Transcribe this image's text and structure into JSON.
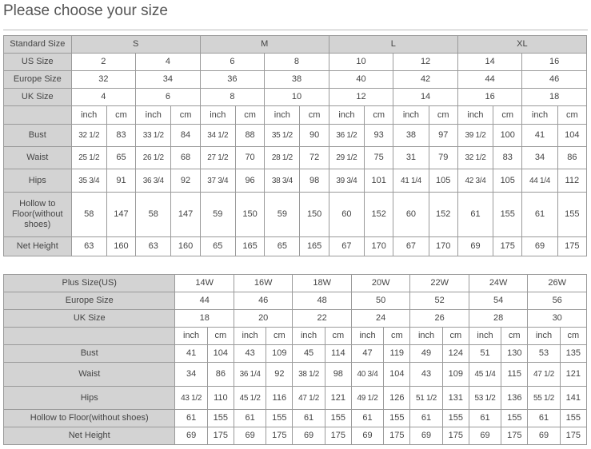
{
  "title": "Please choose your size",
  "table1": {
    "size_label": "Standard Size",
    "sizes": [
      "S",
      "M",
      "L",
      "XL"
    ],
    "rows": [
      {
        "label": "US Size",
        "values": [
          "2",
          "4",
          "6",
          "8",
          "10",
          "12",
          "14",
          "16"
        ]
      },
      {
        "label": "Europe Size",
        "values": [
          "32",
          "34",
          "36",
          "38",
          "40",
          "42",
          "44",
          "46"
        ]
      },
      {
        "label": "UK Size",
        "values": [
          "4",
          "6",
          "8",
          "10",
          "12",
          "14",
          "16",
          "18"
        ]
      }
    ],
    "units": [
      "inch",
      "cm"
    ],
    "measures": [
      {
        "label": "Bust",
        "values": [
          "32 1/2",
          "83",
          "33 1/2",
          "84",
          "34 1/2",
          "88",
          "35 1/2",
          "90",
          "36 1/2",
          "93",
          "38",
          "97",
          "39 1/2",
          "100",
          "41",
          "104"
        ]
      },
      {
        "label": "Waist",
        "values": [
          "25 1/2",
          "65",
          "26 1/2",
          "68",
          "27 1/2",
          "70",
          "28 1/2",
          "72",
          "29 1/2",
          "75",
          "31",
          "79",
          "32 1/2",
          "83",
          "34",
          "86"
        ]
      },
      {
        "label": "Hips",
        "values": [
          "35 3/4",
          "91",
          "36 3/4",
          "92",
          "37 3/4",
          "96",
          "38 3/4",
          "98",
          "39 3/4",
          "101",
          "41 1/4",
          "105",
          "42 3/4",
          "105",
          "44 1/4",
          "112"
        ]
      },
      {
        "label": "Hollow to Floor(without shoes)",
        "values": [
          "58",
          "147",
          "58",
          "147",
          "59",
          "150",
          "59",
          "150",
          "60",
          "152",
          "60",
          "152",
          "61",
          "155",
          "61",
          "155"
        ]
      },
      {
        "label": "Net Height",
        "values": [
          "63",
          "160",
          "63",
          "160",
          "65",
          "165",
          "65",
          "165",
          "67",
          "170",
          "67",
          "170",
          "69",
          "175",
          "69",
          "175"
        ]
      }
    ]
  },
  "table2": {
    "rows": [
      {
        "label": "Plus Size(US)",
        "values": [
          "14W",
          "16W",
          "18W",
          "20W",
          "22W",
          "24W",
          "26W"
        ]
      },
      {
        "label": "Europe Size",
        "values": [
          "44",
          "46",
          "48",
          "50",
          "52",
          "54",
          "56"
        ]
      },
      {
        "label": "UK Size",
        "values": [
          "18",
          "20",
          "22",
          "24",
          "26",
          "28",
          "30"
        ]
      }
    ],
    "units": [
      "inch",
      "cm"
    ],
    "measures": [
      {
        "label": "Bust",
        "values": [
          "41",
          "104",
          "43",
          "109",
          "45",
          "114",
          "47",
          "119",
          "49",
          "124",
          "51",
          "130",
          "53",
          "135"
        ]
      },
      {
        "label": "Waist",
        "values": [
          "34",
          "86",
          "36 1/4",
          "92",
          "38 1/2",
          "98",
          "40 3/4",
          "104",
          "43",
          "109",
          "45 1/4",
          "115",
          "47 1/2",
          "121"
        ]
      },
      {
        "label": "Hips",
        "values": [
          "43 1/2",
          "110",
          "45 1/2",
          "116",
          "47 1/2",
          "121",
          "49 1/2",
          "126",
          "51 1/2",
          "131",
          "53 1/2",
          "136",
          "55 1/2",
          "141"
        ]
      },
      {
        "label": "Hollow to Floor(without shoes)",
        "values": [
          "61",
          "155",
          "61",
          "155",
          "61",
          "155",
          "61",
          "155",
          "61",
          "155",
          "61",
          "155",
          "61",
          "155"
        ]
      },
      {
        "label": "Net Height",
        "values": [
          "69",
          "175",
          "69",
          "175",
          "69",
          "175",
          "69",
          "175",
          "69",
          "175",
          "69",
          "175",
          "69",
          "175"
        ]
      }
    ]
  }
}
